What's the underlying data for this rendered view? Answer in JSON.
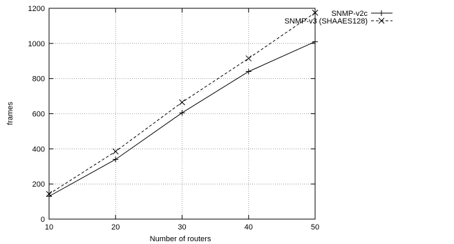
{
  "chart_data": {
    "type": "line",
    "title": "",
    "xlabel": "Number of routers",
    "ylabel": "frames",
    "x": [
      10,
      20,
      30,
      40,
      50
    ],
    "xlim": [
      10,
      50
    ],
    "ylim": [
      0,
      1200
    ],
    "xticks": [
      "10",
      "20",
      "30",
      "40",
      "50"
    ],
    "yticks": [
      "0",
      "200",
      "400",
      "600",
      "800",
      "1000",
      "1200"
    ],
    "grid": true,
    "legend_position": "outside-top-right",
    "series": [
      {
        "name": "SNMP-v2c",
        "values": [
          130,
          340,
          605,
          840,
          1010
        ],
        "marker": "plus",
        "line_style": "solid",
        "color": "#000000"
      },
      {
        "name": "SNMP-v3 (SHAAES128)",
        "values": [
          143,
          385,
          665,
          915,
          1175
        ],
        "marker": "cross",
        "line_style": "dashed",
        "color": "#000000"
      }
    ]
  }
}
